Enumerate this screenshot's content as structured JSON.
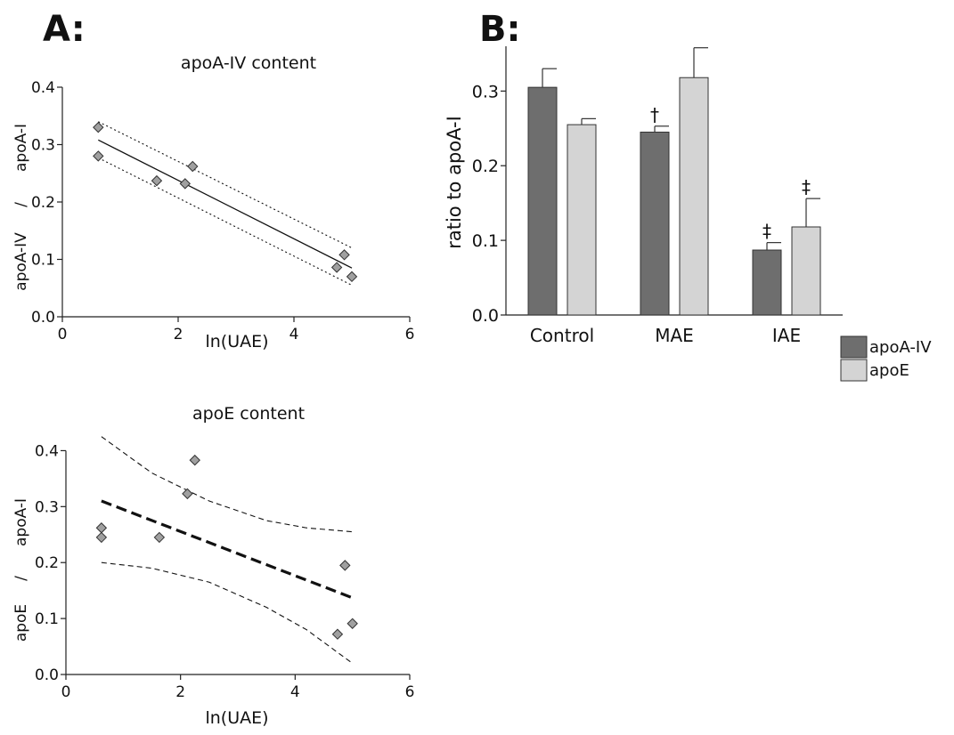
{
  "panel_labels": {
    "a": "A:",
    "b": "B:"
  },
  "chart_data": [
    {
      "id": "apoa4",
      "type": "scatter",
      "title": "apoA-IV content",
      "xlabel": "ln(UAE)",
      "ylabel_top": "apoA-I",
      "ylabel_sep": "/",
      "ylabel_bottom": "apoA-IV",
      "xlim": [
        0,
        6
      ],
      "ylim": [
        0,
        0.4
      ],
      "xticks": [
        0,
        2,
        4,
        6
      ],
      "yticks": [
        0.0,
        0.1,
        0.2,
        0.3,
        0.4
      ],
      "ytick_labels": [
        "0.0",
        "0.1",
        "0.2",
        "0.3",
        "0.4"
      ],
      "marker_color": "#a0a0a0",
      "points": [
        {
          "x": 0.62,
          "y": 0.33
        },
        {
          "x": 0.62,
          "y": 0.28
        },
        {
          "x": 1.63,
          "y": 0.237
        },
        {
          "x": 2.12,
          "y": 0.232
        },
        {
          "x": 2.25,
          "y": 0.262
        },
        {
          "x": 4.74,
          "y": 0.086
        },
        {
          "x": 4.87,
          "y": 0.108
        },
        {
          "x": 5.0,
          "y": 0.07
        }
      ],
      "fit": {
        "x": [
          0.62,
          5.0
        ],
        "y": [
          0.308,
          0.085
        ],
        "style": "solid"
      },
      "ci_upper": {
        "x": [
          0.62,
          5.0
        ],
        "y": [
          0.34,
          0.12
        ],
        "style": "dotted"
      },
      "ci_lower": {
        "x": [
          0.62,
          5.0
        ],
        "y": [
          0.277,
          0.055
        ],
        "style": "dotted"
      }
    },
    {
      "id": "apoe",
      "type": "scatter",
      "title": "apoE content",
      "xlabel": "ln(UAE)",
      "ylabel_top": "apoA-I",
      "ylabel_sep": "/",
      "ylabel_bottom": "apoE",
      "xlim": [
        0,
        6
      ],
      "ylim": [
        0,
        0.45
      ],
      "xticks": [
        0,
        2,
        4,
        6
      ],
      "yticks": [
        0.0,
        0.1,
        0.2,
        0.3,
        0.4
      ],
      "ytick_labels": [
        "0.0",
        "0.1",
        "0.2",
        "0.3",
        "0.4"
      ],
      "marker_color": "#a0a0a0",
      "points": [
        {
          "x": 0.62,
          "y": 0.262
        },
        {
          "x": 0.62,
          "y": 0.245
        },
        {
          "x": 1.63,
          "y": 0.245
        },
        {
          "x": 2.12,
          "y": 0.323
        },
        {
          "x": 2.25,
          "y": 0.383
        },
        {
          "x": 4.74,
          "y": 0.072
        },
        {
          "x": 4.87,
          "y": 0.195
        },
        {
          "x": 5.0,
          "y": 0.091
        }
      ],
      "fit": {
        "x": [
          0.62,
          5.0
        ],
        "y": [
          0.31,
          0.137
        ],
        "style": "bold-dashed"
      },
      "ci_upper": {
        "x": [
          0.62,
          1.5,
          2.5,
          3.5,
          4.2,
          5.0
        ],
        "y": [
          0.425,
          0.36,
          0.31,
          0.275,
          0.262,
          0.255
        ],
        "style": "dashed"
      },
      "ci_lower": {
        "x": [
          0.62,
          1.5,
          2.5,
          3.5,
          4.2,
          5.0
        ],
        "y": [
          0.2,
          0.19,
          0.165,
          0.12,
          0.08,
          0.02
        ],
        "style": "dashed"
      }
    },
    {
      "id": "ratio",
      "type": "bar",
      "ylabel": "ratio  to  apoA-I",
      "categories": [
        "Control",
        "MAE",
        "IAE"
      ],
      "ylim": [
        0,
        0.36
      ],
      "yticks": [
        0.0,
        0.1,
        0.2,
        0.3
      ],
      "ytick_labels": [
        "0.0",
        "0.1",
        "0.2",
        "0.3"
      ],
      "series": [
        {
          "name": "apoA-IV",
          "color": "#6e6e6e",
          "values": [
            0.305,
            0.245,
            0.087
          ],
          "errors": [
            0.025,
            0.008,
            0.01
          ]
        },
        {
          "name": "apoE",
          "color": "#d4d4d4",
          "values": [
            0.255,
            0.318,
            0.118
          ],
          "errors": [
            0.008,
            0.04,
            0.038
          ]
        }
      ],
      "annotations": [
        {
          "category": 1,
          "series": 0,
          "text": "†"
        },
        {
          "category": 2,
          "series": 0,
          "text": "‡"
        },
        {
          "category": 2,
          "series": 1,
          "text": "‡"
        }
      ],
      "legend_position": "bottom-right"
    }
  ]
}
